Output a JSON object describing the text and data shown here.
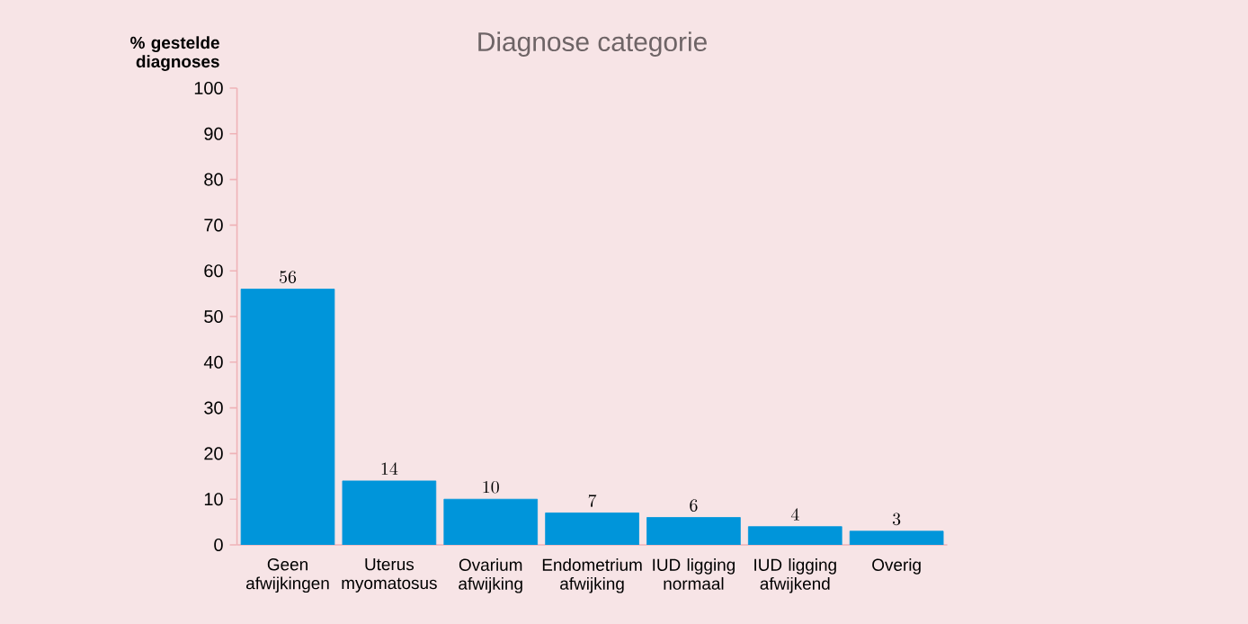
{
  "chart_data": {
    "type": "bar",
    "title": "Diagnose categorie",
    "ylabel": "% gestelde diagnoses",
    "categories": [
      "Geen afwijkingen",
      "Uterus myomatosus",
      "Ovarium afwijking",
      "Endometrium afwijking",
      "IUD ligging normaal",
      "IUD ligging afwijkend",
      "Overig"
    ],
    "values": [
      56,
      14,
      10,
      7,
      6,
      4,
      3
    ],
    "color": "#0095da",
    "ylim": [
      0,
      100
    ],
    "yticks": [
      0,
      10,
      20,
      30,
      40,
      50,
      60,
      70,
      80,
      90,
      100
    ],
    "data_labels": true
  }
}
